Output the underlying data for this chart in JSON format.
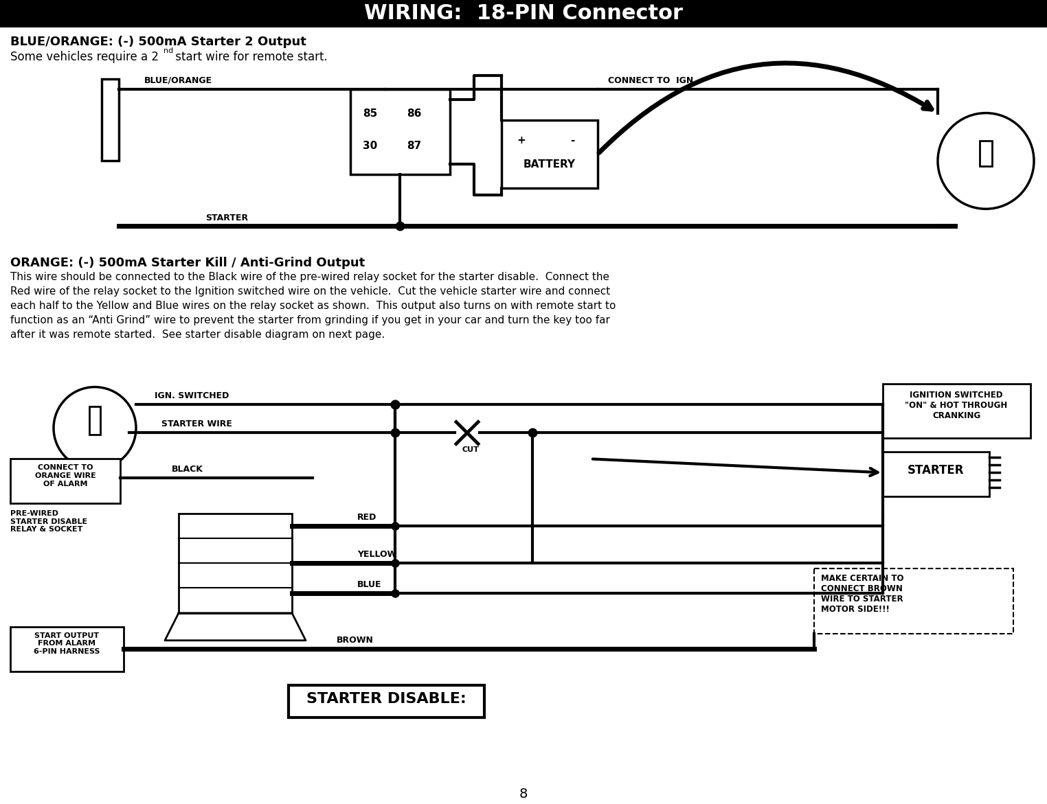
{
  "title": "WIRING:  18-PIN Connector",
  "title_bg": "#000000",
  "title_fg": "#ffffff",
  "page_bg": "#ffffff",
  "page_number": "8",
  "section1_heading": "BLUE/ORANGE: (-) 500mA Starter 2 Output",
  "section1_subtext": "Some vehicles require a 2",
  "section1_superscript": "nd",
  "section1_subtext2": " start wire for remote start.",
  "section2_heading": "ORANGE: (-) 500mA Starter Kill / Anti-Grind Output",
  "section2_body": "This wire should be connected to the Black wire of the pre-wired relay socket for the starter disable.  Connect the\nRed wire of the relay socket to the Ignition switched wire on the vehicle.  Cut the vehicle starter wire and connect\neach half to the Yellow and Blue wires on the relay socket as shown.  This output also turns on with remote start to\nfunction as an “Anti Grind” wire to prevent the starter from grinding if you get in your car and turn the key too far\nafter it was remote started.  See starter disable diagram on next page.",
  "diag1_label_blueorange": "BLUE/ORANGE",
  "diag1_label_connect_ign": "CONNECT TO  IGN",
  "diag1_relay_numbers": [
    "85",
    "86",
    "30",
    "87"
  ],
  "diag1_battery_label": "BATTERY",
  "diag1_battery_plus": "+",
  "diag1_battery_minus": "-",
  "diag1_starter_label": "STARTER",
  "diag2_label_ign_switched": "IGN. SWITCHED",
  "diag2_label_starter_wire": "STARTER WIRE",
  "diag2_label_cut": "CUT",
  "diag2_label_black": "BLACK",
  "diag2_label_red": "RED",
  "diag2_label_yellow": "YELLOW",
  "diag2_label_blue": "BLUE",
  "diag2_label_brown": "BROWN",
  "diag2_box_connect": "CONNECT TO\nORANGE WIRE\nOF ALARM",
  "diag2_box_prewired": "PRE-WIRED\nSTARTER DISABLE\nRELAY & SOCKET",
  "diag2_box_start_output": "START OUTPUT\nFROM ALARM\n6-PIN HARNESS",
  "diag2_box_starter": "STARTER",
  "diag2_box_ign_switched": "IGNITION SWITCHED\n\"ON\" & HOT THROUGH\nCRANKING",
  "diag2_box_make_certain": "MAKE CERTAIN TO\nCONNECT BROWN\nWIRE TO STARTER\nMOTOR SIDE!!!",
  "diag2_label_starter_disable": "STARTER DISABLE:"
}
